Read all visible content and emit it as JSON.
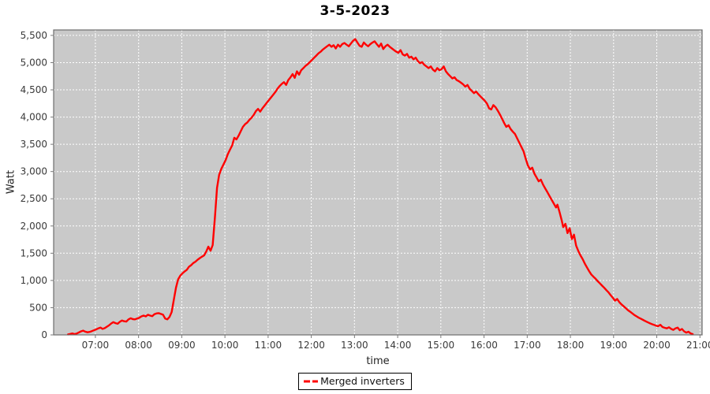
{
  "window": {
    "background": "#ffffff"
  },
  "chart_data": {
    "type": "line",
    "title": "3-5-2023",
    "xlabel": "time",
    "ylabel": "Watt",
    "legend": {
      "position": "bottom",
      "entries": [
        {
          "label": "Merged inverters",
          "color": "#ff0000"
        }
      ]
    },
    "plot": {
      "background": "#c9c9c9",
      "border_color": "#6e6e6e",
      "grid": "on",
      "gridline_color": "#ffffff",
      "tick_color": "#7a7a7a",
      "tick_label_color": "#3a3a3a"
    },
    "x_axis": {
      "unit": "time of day",
      "tick_labels": [
        "07:00",
        "08:00",
        "09:00",
        "10:00",
        "11:00",
        "12:00",
        "13:00",
        "14:00",
        "15:00",
        "16:00",
        "17:00",
        "18:00",
        "19:00",
        "20:00",
        "21:00"
      ],
      "tick_minutes": [
        420,
        480,
        540,
        600,
        660,
        720,
        780,
        840,
        900,
        960,
        1020,
        1080,
        1140,
        1200,
        1260
      ],
      "range_minutes": [
        362,
        1263
      ]
    },
    "y_axis": {
      "unit": "Watt",
      "tick_labels": [
        "0",
        "500",
        "1,000",
        "1,500",
        "2,000",
        "2,500",
        "3,000",
        "3,500",
        "4,000",
        "4,500",
        "5,000",
        "5,500"
      ],
      "tick_values": [
        0,
        500,
        1000,
        1500,
        2000,
        2500,
        3000,
        3500,
        4000,
        4500,
        5000,
        5500
      ],
      "range": [
        0,
        5600
      ]
    },
    "series": [
      {
        "name": "Merged inverters",
        "color": "#ff0000",
        "points_min_watt": [
          [
            382,
            8
          ],
          [
            385,
            18
          ],
          [
            388,
            28
          ],
          [
            391,
            15
          ],
          [
            394,
            25
          ],
          [
            397,
            45
          ],
          [
            400,
            65
          ],
          [
            403,
            78
          ],
          [
            406,
            60
          ],
          [
            409,
            48
          ],
          [
            412,
            55
          ],
          [
            415,
            70
          ],
          [
            418,
            85
          ],
          [
            421,
            100
          ],
          [
            424,
            120
          ],
          [
            427,
            135
          ],
          [
            430,
            110
          ],
          [
            433,
            125
          ],
          [
            436,
            150
          ],
          [
            439,
            175
          ],
          [
            442,
            210
          ],
          [
            445,
            235
          ],
          [
            448,
            215
          ],
          [
            451,
            205
          ],
          [
            454,
            240
          ],
          [
            457,
            265
          ],
          [
            460,
            250
          ],
          [
            463,
            245
          ],
          [
            466,
            285
          ],
          [
            469,
            305
          ],
          [
            472,
            290
          ],
          [
            475,
            285
          ],
          [
            478,
            300
          ],
          [
            481,
            315
          ],
          [
            484,
            340
          ],
          [
            487,
            355
          ],
          [
            490,
            340
          ],
          [
            493,
            370
          ],
          [
            496,
            355
          ],
          [
            499,
            345
          ],
          [
            502,
            380
          ],
          [
            505,
            395
          ],
          [
            508,
            400
          ],
          [
            511,
            385
          ],
          [
            514,
            370
          ],
          [
            517,
            300
          ],
          [
            520,
            285
          ],
          [
            523,
            330
          ],
          [
            526,
            420
          ],
          [
            529,
            650
          ],
          [
            532,
            870
          ],
          [
            535,
            1020
          ],
          [
            538,
            1090
          ],
          [
            541,
            1130
          ],
          [
            544,
            1165
          ],
          [
            547,
            1195
          ],
          [
            550,
            1250
          ],
          [
            553,
            1280
          ],
          [
            556,
            1320
          ],
          [
            559,
            1345
          ],
          [
            562,
            1380
          ],
          [
            565,
            1410
          ],
          [
            568,
            1435
          ],
          [
            571,
            1460
          ],
          [
            574,
            1530
          ],
          [
            577,
            1620
          ],
          [
            580,
            1545
          ],
          [
            583,
            1650
          ],
          [
            586,
            2150
          ],
          [
            589,
            2700
          ],
          [
            592,
            2940
          ],
          [
            595,
            3050
          ],
          [
            598,
            3130
          ],
          [
            601,
            3210
          ],
          [
            604,
            3320
          ],
          [
            607,
            3400
          ],
          [
            610,
            3480
          ],
          [
            613,
            3620
          ],
          [
            616,
            3590
          ],
          [
            619,
            3660
          ],
          [
            622,
            3740
          ],
          [
            625,
            3820
          ],
          [
            628,
            3870
          ],
          [
            631,
            3900
          ],
          [
            634,
            3950
          ],
          [
            637,
            3990
          ],
          [
            640,
            4040
          ],
          [
            643,
            4110
          ],
          [
            646,
            4150
          ],
          [
            649,
            4100
          ],
          [
            652,
            4160
          ],
          [
            655,
            4210
          ],
          [
            658,
            4260
          ],
          [
            661,
            4310
          ],
          [
            664,
            4360
          ],
          [
            667,
            4410
          ],
          [
            670,
            4460
          ],
          [
            673,
            4520
          ],
          [
            676,
            4570
          ],
          [
            679,
            4610
          ],
          [
            682,
            4640
          ],
          [
            685,
            4590
          ],
          [
            688,
            4680
          ],
          [
            691,
            4730
          ],
          [
            694,
            4790
          ],
          [
            697,
            4720
          ],
          [
            700,
            4840
          ],
          [
            703,
            4780
          ],
          [
            706,
            4860
          ],
          [
            709,
            4900
          ],
          [
            712,
            4940
          ],
          [
            715,
            4970
          ],
          [
            718,
            5010
          ],
          [
            721,
            5050
          ],
          [
            724,
            5090
          ],
          [
            727,
            5130
          ],
          [
            730,
            5170
          ],
          [
            733,
            5200
          ],
          [
            736,
            5240
          ],
          [
            739,
            5270
          ],
          [
            742,
            5300
          ],
          [
            745,
            5330
          ],
          [
            748,
            5290
          ],
          [
            751,
            5320
          ],
          [
            754,
            5260
          ],
          [
            757,
            5330
          ],
          [
            760,
            5290
          ],
          [
            763,
            5340
          ],
          [
            766,
            5360
          ],
          [
            769,
            5330
          ],
          [
            772,
            5300
          ],
          [
            775,
            5350
          ],
          [
            778,
            5400
          ],
          [
            781,
            5430
          ],
          [
            784,
            5370
          ],
          [
            787,
            5310
          ],
          [
            790,
            5290
          ],
          [
            793,
            5370
          ],
          [
            796,
            5330
          ],
          [
            799,
            5300
          ],
          [
            802,
            5340
          ],
          [
            805,
            5370
          ],
          [
            808,
            5390
          ],
          [
            811,
            5340
          ],
          [
            814,
            5290
          ],
          [
            817,
            5350
          ],
          [
            820,
            5250
          ],
          [
            823,
            5300
          ],
          [
            826,
            5330
          ],
          [
            829,
            5290
          ],
          [
            832,
            5260
          ],
          [
            835,
            5230
          ],
          [
            838,
            5200
          ],
          [
            841,
            5180
          ],
          [
            844,
            5230
          ],
          [
            847,
            5150
          ],
          [
            850,
            5130
          ],
          [
            853,
            5160
          ],
          [
            856,
            5090
          ],
          [
            859,
            5110
          ],
          [
            862,
            5060
          ],
          [
            865,
            5090
          ],
          [
            868,
            5030
          ],
          [
            871,
            4990
          ],
          [
            874,
            5010
          ],
          [
            877,
            4960
          ],
          [
            880,
            4930
          ],
          [
            883,
            4900
          ],
          [
            886,
            4930
          ],
          [
            889,
            4870
          ],
          [
            892,
            4840
          ],
          [
            895,
            4900
          ],
          [
            898,
            4860
          ],
          [
            901,
            4880
          ],
          [
            904,
            4930
          ],
          [
            907,
            4840
          ],
          [
            910,
            4790
          ],
          [
            913,
            4750
          ],
          [
            916,
            4710
          ],
          [
            919,
            4730
          ],
          [
            922,
            4680
          ],
          [
            925,
            4660
          ],
          [
            928,
            4630
          ],
          [
            931,
            4600
          ],
          [
            934,
            4560
          ],
          [
            937,
            4590
          ],
          [
            940,
            4520
          ],
          [
            943,
            4480
          ],
          [
            946,
            4440
          ],
          [
            949,
            4470
          ],
          [
            952,
            4420
          ],
          [
            955,
            4380
          ],
          [
            958,
            4340
          ],
          [
            961,
            4300
          ],
          [
            964,
            4250
          ],
          [
            967,
            4160
          ],
          [
            970,
            4140
          ],
          [
            973,
            4220
          ],
          [
            976,
            4180
          ],
          [
            979,
            4120
          ],
          [
            982,
            4050
          ],
          [
            985,
            3970
          ],
          [
            988,
            3890
          ],
          [
            991,
            3820
          ],
          [
            994,
            3850
          ],
          [
            997,
            3780
          ],
          [
            1000,
            3730
          ],
          [
            1003,
            3690
          ],
          [
            1006,
            3610
          ],
          [
            1009,
            3530
          ],
          [
            1012,
            3450
          ],
          [
            1015,
            3370
          ],
          [
            1018,
            3230
          ],
          [
            1021,
            3110
          ],
          [
            1024,
            3040
          ],
          [
            1027,
            3070
          ],
          [
            1030,
            2960
          ],
          [
            1033,
            2890
          ],
          [
            1036,
            2820
          ],
          [
            1039,
            2850
          ],
          [
            1042,
            2760
          ],
          [
            1045,
            2690
          ],
          [
            1048,
            2620
          ],
          [
            1051,
            2550
          ],
          [
            1054,
            2480
          ],
          [
            1057,
            2410
          ],
          [
            1060,
            2340
          ],
          [
            1062,
            2390
          ],
          [
            1065,
            2250
          ],
          [
            1068,
            2100
          ],
          [
            1070,
            1980
          ],
          [
            1073,
            2040
          ],
          [
            1076,
            1870
          ],
          [
            1079,
            1960
          ],
          [
            1082,
            1760
          ],
          [
            1085,
            1840
          ],
          [
            1088,
            1640
          ],
          [
            1091,
            1540
          ],
          [
            1094,
            1460
          ],
          [
            1097,
            1390
          ],
          [
            1100,
            1310
          ],
          [
            1103,
            1240
          ],
          [
            1106,
            1170
          ],
          [
            1109,
            1110
          ],
          [
            1112,
            1070
          ],
          [
            1115,
            1030
          ],
          [
            1118,
            985
          ],
          [
            1121,
            945
          ],
          [
            1124,
            905
          ],
          [
            1127,
            865
          ],
          [
            1130,
            820
          ],
          [
            1133,
            780
          ],
          [
            1136,
            730
          ],
          [
            1139,
            680
          ],
          [
            1142,
            630
          ],
          [
            1145,
            660
          ],
          [
            1148,
            600
          ],
          [
            1151,
            560
          ],
          [
            1154,
            525
          ],
          [
            1157,
            490
          ],
          [
            1160,
            455
          ],
          [
            1163,
            425
          ],
          [
            1166,
            395
          ],
          [
            1169,
            365
          ],
          [
            1172,
            340
          ],
          [
            1175,
            315
          ],
          [
            1178,
            295
          ],
          [
            1181,
            275
          ],
          [
            1184,
            255
          ],
          [
            1187,
            235
          ],
          [
            1190,
            215
          ],
          [
            1193,
            200
          ],
          [
            1196,
            185
          ],
          [
            1199,
            170
          ],
          [
            1202,
            160
          ],
          [
            1205,
            185
          ],
          [
            1208,
            145
          ],
          [
            1211,
            130
          ],
          [
            1214,
            120
          ],
          [
            1217,
            140
          ],
          [
            1220,
            110
          ],
          [
            1223,
            92
          ],
          [
            1226,
            120
          ],
          [
            1229,
            135
          ],
          [
            1232,
            85
          ],
          [
            1235,
            108
          ],
          [
            1238,
            65
          ],
          [
            1241,
            42
          ],
          [
            1244,
            58
          ],
          [
            1247,
            28
          ],
          [
            1250,
            15
          ]
        ]
      }
    ]
  }
}
